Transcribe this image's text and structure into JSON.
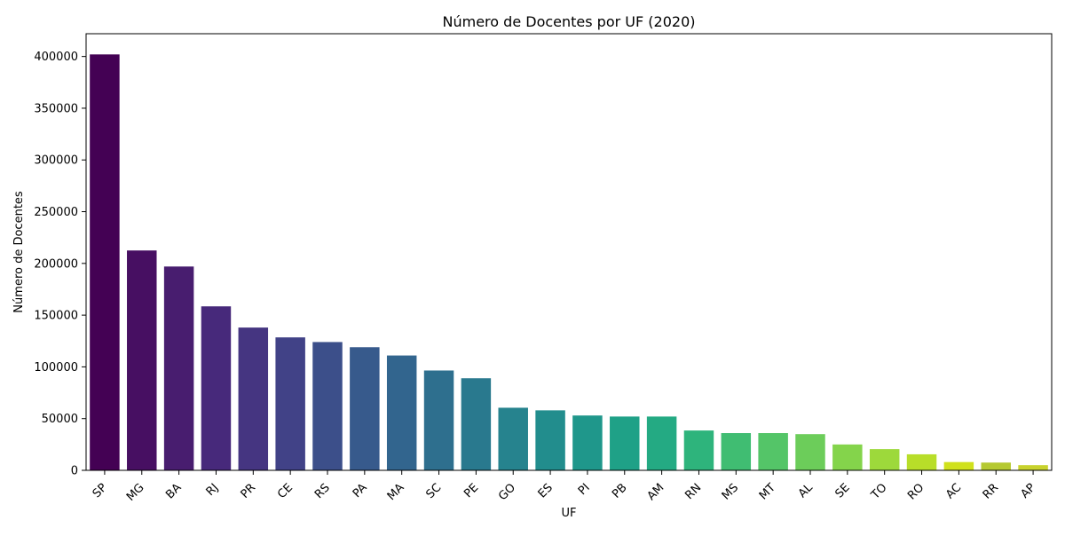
{
  "chart_data": {
    "type": "bar",
    "title": "Número de Docentes por UF (2020)",
    "xlabel": "UF",
    "ylabel": "Número de Docentes",
    "ylim": [
      0,
      422000
    ],
    "yticks": [
      0,
      50000,
      100000,
      150000,
      200000,
      250000,
      300000,
      350000,
      400000
    ],
    "grid": false,
    "legend": "none",
    "colormap": "viridis",
    "categories": [
      "SP",
      "MG",
      "BA",
      "RJ",
      "PR",
      "CE",
      "RS",
      "PA",
      "MA",
      "SC",
      "PE",
      "GO",
      "ES",
      "PI",
      "PB",
      "AM",
      "RN",
      "MS",
      "MT",
      "AL",
      "SE",
      "TO",
      "RO",
      "AC",
      "RR",
      "AP"
    ],
    "values": [
      402000,
      212500,
      197000,
      158500,
      138000,
      128500,
      124000,
      119000,
      111000,
      96500,
      89000,
      60500,
      58000,
      53000,
      52000,
      52000,
      38500,
      36000,
      36000,
      35000,
      25000,
      20500,
      15500,
      8000,
      7500,
      5000
    ],
    "colors": [
      "#440154",
      "#470f62",
      "#481d6f",
      "#47297b",
      "#453581",
      "#414287",
      "#3c4f8a",
      "#375a8c",
      "#32658e",
      "#2e6f8e",
      "#29798e",
      "#26838e",
      "#228d8d",
      "#1f978b",
      "#1fa187",
      "#24aa83",
      "#2eb47c",
      "#40bd72",
      "#54c568",
      "#6ccd5a",
      "#84d44b",
      "#9dd93b",
      "#b8de29",
      "#d0e11c",
      "#b5c931",
      "#c8d22d"
    ]
  }
}
